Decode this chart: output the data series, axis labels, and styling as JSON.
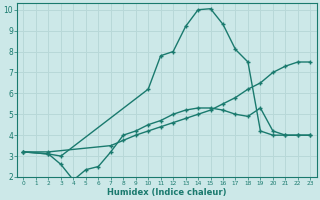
{
  "bg_color": "#cce8e8",
  "line_color": "#1a7a6e",
  "grid_color": "#b8d8d8",
  "xlabel": "Humidex (Indice chaleur)",
  "xlim": [
    -0.5,
    23.5
  ],
  "ylim": [
    2,
    10.3
  ],
  "xticks": [
    0,
    1,
    2,
    3,
    4,
    5,
    6,
    7,
    8,
    9,
    10,
    11,
    12,
    13,
    14,
    15,
    16,
    17,
    18,
    19,
    20,
    21,
    22,
    23
  ],
  "yticks": [
    2,
    3,
    4,
    5,
    6,
    7,
    8,
    9,
    10
  ],
  "line1_x": [
    0,
    2,
    3,
    10,
    11,
    12,
    13,
    14,
    15,
    16,
    17,
    18,
    19,
    20,
    21,
    22,
    23
  ],
  "line1_y": [
    3.2,
    3.1,
    3.0,
    6.2,
    7.8,
    8.0,
    9.2,
    10.0,
    10.05,
    9.3,
    8.1,
    7.5,
    4.2,
    4.0,
    4.0,
    4.0,
    4.0
  ],
  "line2_x": [
    0,
    2,
    7,
    8,
    9,
    10,
    11,
    12,
    13,
    14,
    15,
    16,
    17,
    18,
    19,
    20,
    21,
    22,
    23
  ],
  "line2_y": [
    3.2,
    3.2,
    3.5,
    3.75,
    4.0,
    4.2,
    4.4,
    4.6,
    4.8,
    5.0,
    5.2,
    5.5,
    5.8,
    6.2,
    6.5,
    7.0,
    7.3,
    7.5,
    7.5
  ],
  "line3_x": [
    0,
    2,
    3,
    4,
    5,
    6,
    7,
    8,
    9,
    10,
    11,
    12,
    13,
    14,
    15,
    16,
    17,
    18,
    19,
    20,
    21,
    22,
    23
  ],
  "line3_y": [
    3.2,
    3.1,
    2.6,
    1.85,
    2.35,
    2.5,
    3.2,
    4.0,
    4.2,
    4.5,
    4.7,
    5.0,
    5.2,
    5.3,
    5.3,
    5.2,
    5.0,
    4.9,
    5.3,
    4.2,
    4.0,
    4.0,
    4.0
  ]
}
